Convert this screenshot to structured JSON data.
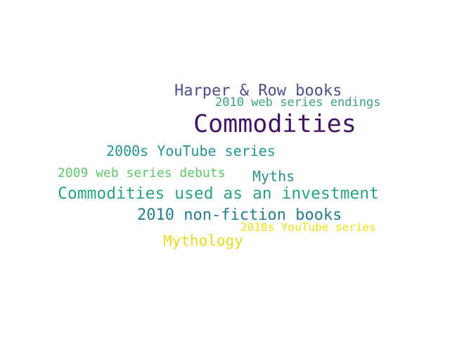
{
  "words": [
    {
      "text": "Harper & Row books",
      "color": "#4b4e8b"
    },
    {
      "text": "2010 web series endings",
      "color": "#3aa083"
    },
    {
      "text": "Commodities",
      "color": "#451263"
    },
    {
      "text": "2000s YouTube series",
      "color": "#239490"
    },
    {
      "text": "2009 web series debuts",
      "color": "#5fc567"
    },
    {
      "text": "Myths",
      "color": "#2a8f8e"
    },
    {
      "text": "Commodities used as an investment",
      "color": "#29a282"
    },
    {
      "text": "2010 non-fiction books",
      "color": "#237c8e"
    },
    {
      "text": "2010s YouTube series",
      "color": "#f0e01a"
    },
    {
      "text": "Mythology",
      "color": "#e6d91f"
    }
  ]
}
